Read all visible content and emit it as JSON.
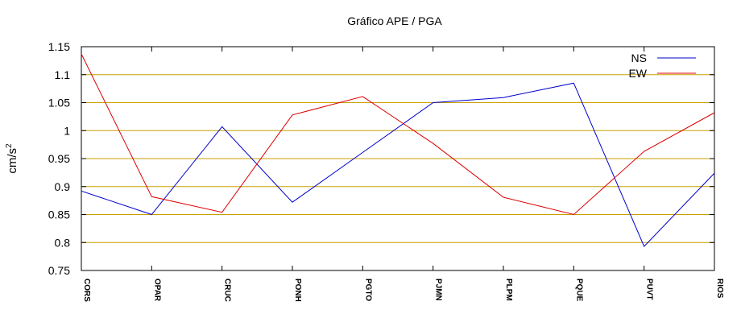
{
  "chart_data": {
    "type": "line",
    "title": "Gráfico  APE / PGA",
    "xlabel": "",
    "ylabel": "cm/s",
    "ylabel_exponent": "2",
    "categories": [
      "CORS",
      "OPAR",
      "CRUC",
      "PONH",
      "PGTO",
      "PJMN",
      "PLPM",
      "PQUE",
      "PUVT",
      "RIOS"
    ],
    "ylim": [
      0.75,
      1.15
    ],
    "yticks": [
      0.75,
      0.8,
      0.85,
      0.9,
      0.95,
      1,
      1.05,
      1.1,
      1.15
    ],
    "ytick_labels": [
      "0.75",
      "0.8",
      "0.85",
      "0.9",
      "0.95",
      "1",
      "1.05",
      "1.1",
      "1.15"
    ],
    "grid": true,
    "legend_position": "top-right",
    "series": [
      {
        "name": "NS",
        "color": "#0000cc",
        "values": [
          0.892,
          0.85,
          1.007,
          0.872,
          0.961,
          1.05,
          1.059,
          1.085,
          0.793,
          0.924
        ]
      },
      {
        "name": "EW",
        "color": "#dd0000",
        "values": [
          1.137,
          0.882,
          0.854,
          1.028,
          1.061,
          0.977,
          0.881,
          0.85,
          0.963,
          1.032
        ]
      }
    ],
    "grid_color": "#c8a000"
  }
}
